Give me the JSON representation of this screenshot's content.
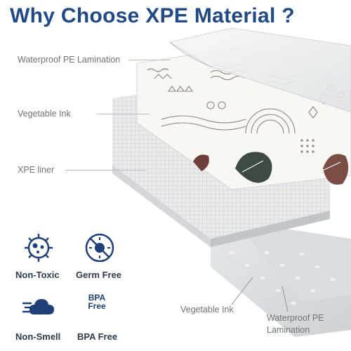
{
  "title": "Why Choose XPE Material ?",
  "layers": {
    "top": "Waterproof PE Lamination",
    "ink": "Vegetable Ink",
    "liner": "XPE liner"
  },
  "bottom_labels": {
    "ink": "Vegetable Ink",
    "lamination_line1": "Waterproof PE",
    "lamination_line2": "Lamination"
  },
  "features": [
    {
      "label": "Non-Toxic",
      "icon": "virus-icon"
    },
    {
      "label": "Germ Free",
      "icon": "no-germ-icon"
    },
    {
      "label": "Non-Smell",
      "icon": "cloud-smell-icon"
    },
    {
      "label": "BPA Free",
      "icon": "bpa-free-icon"
    }
  ],
  "bpa_badge": {
    "line1": "BPA",
    "line2": "Free"
  },
  "colors": {
    "accent": "#1f4a86",
    "text": "#6f7378"
  }
}
